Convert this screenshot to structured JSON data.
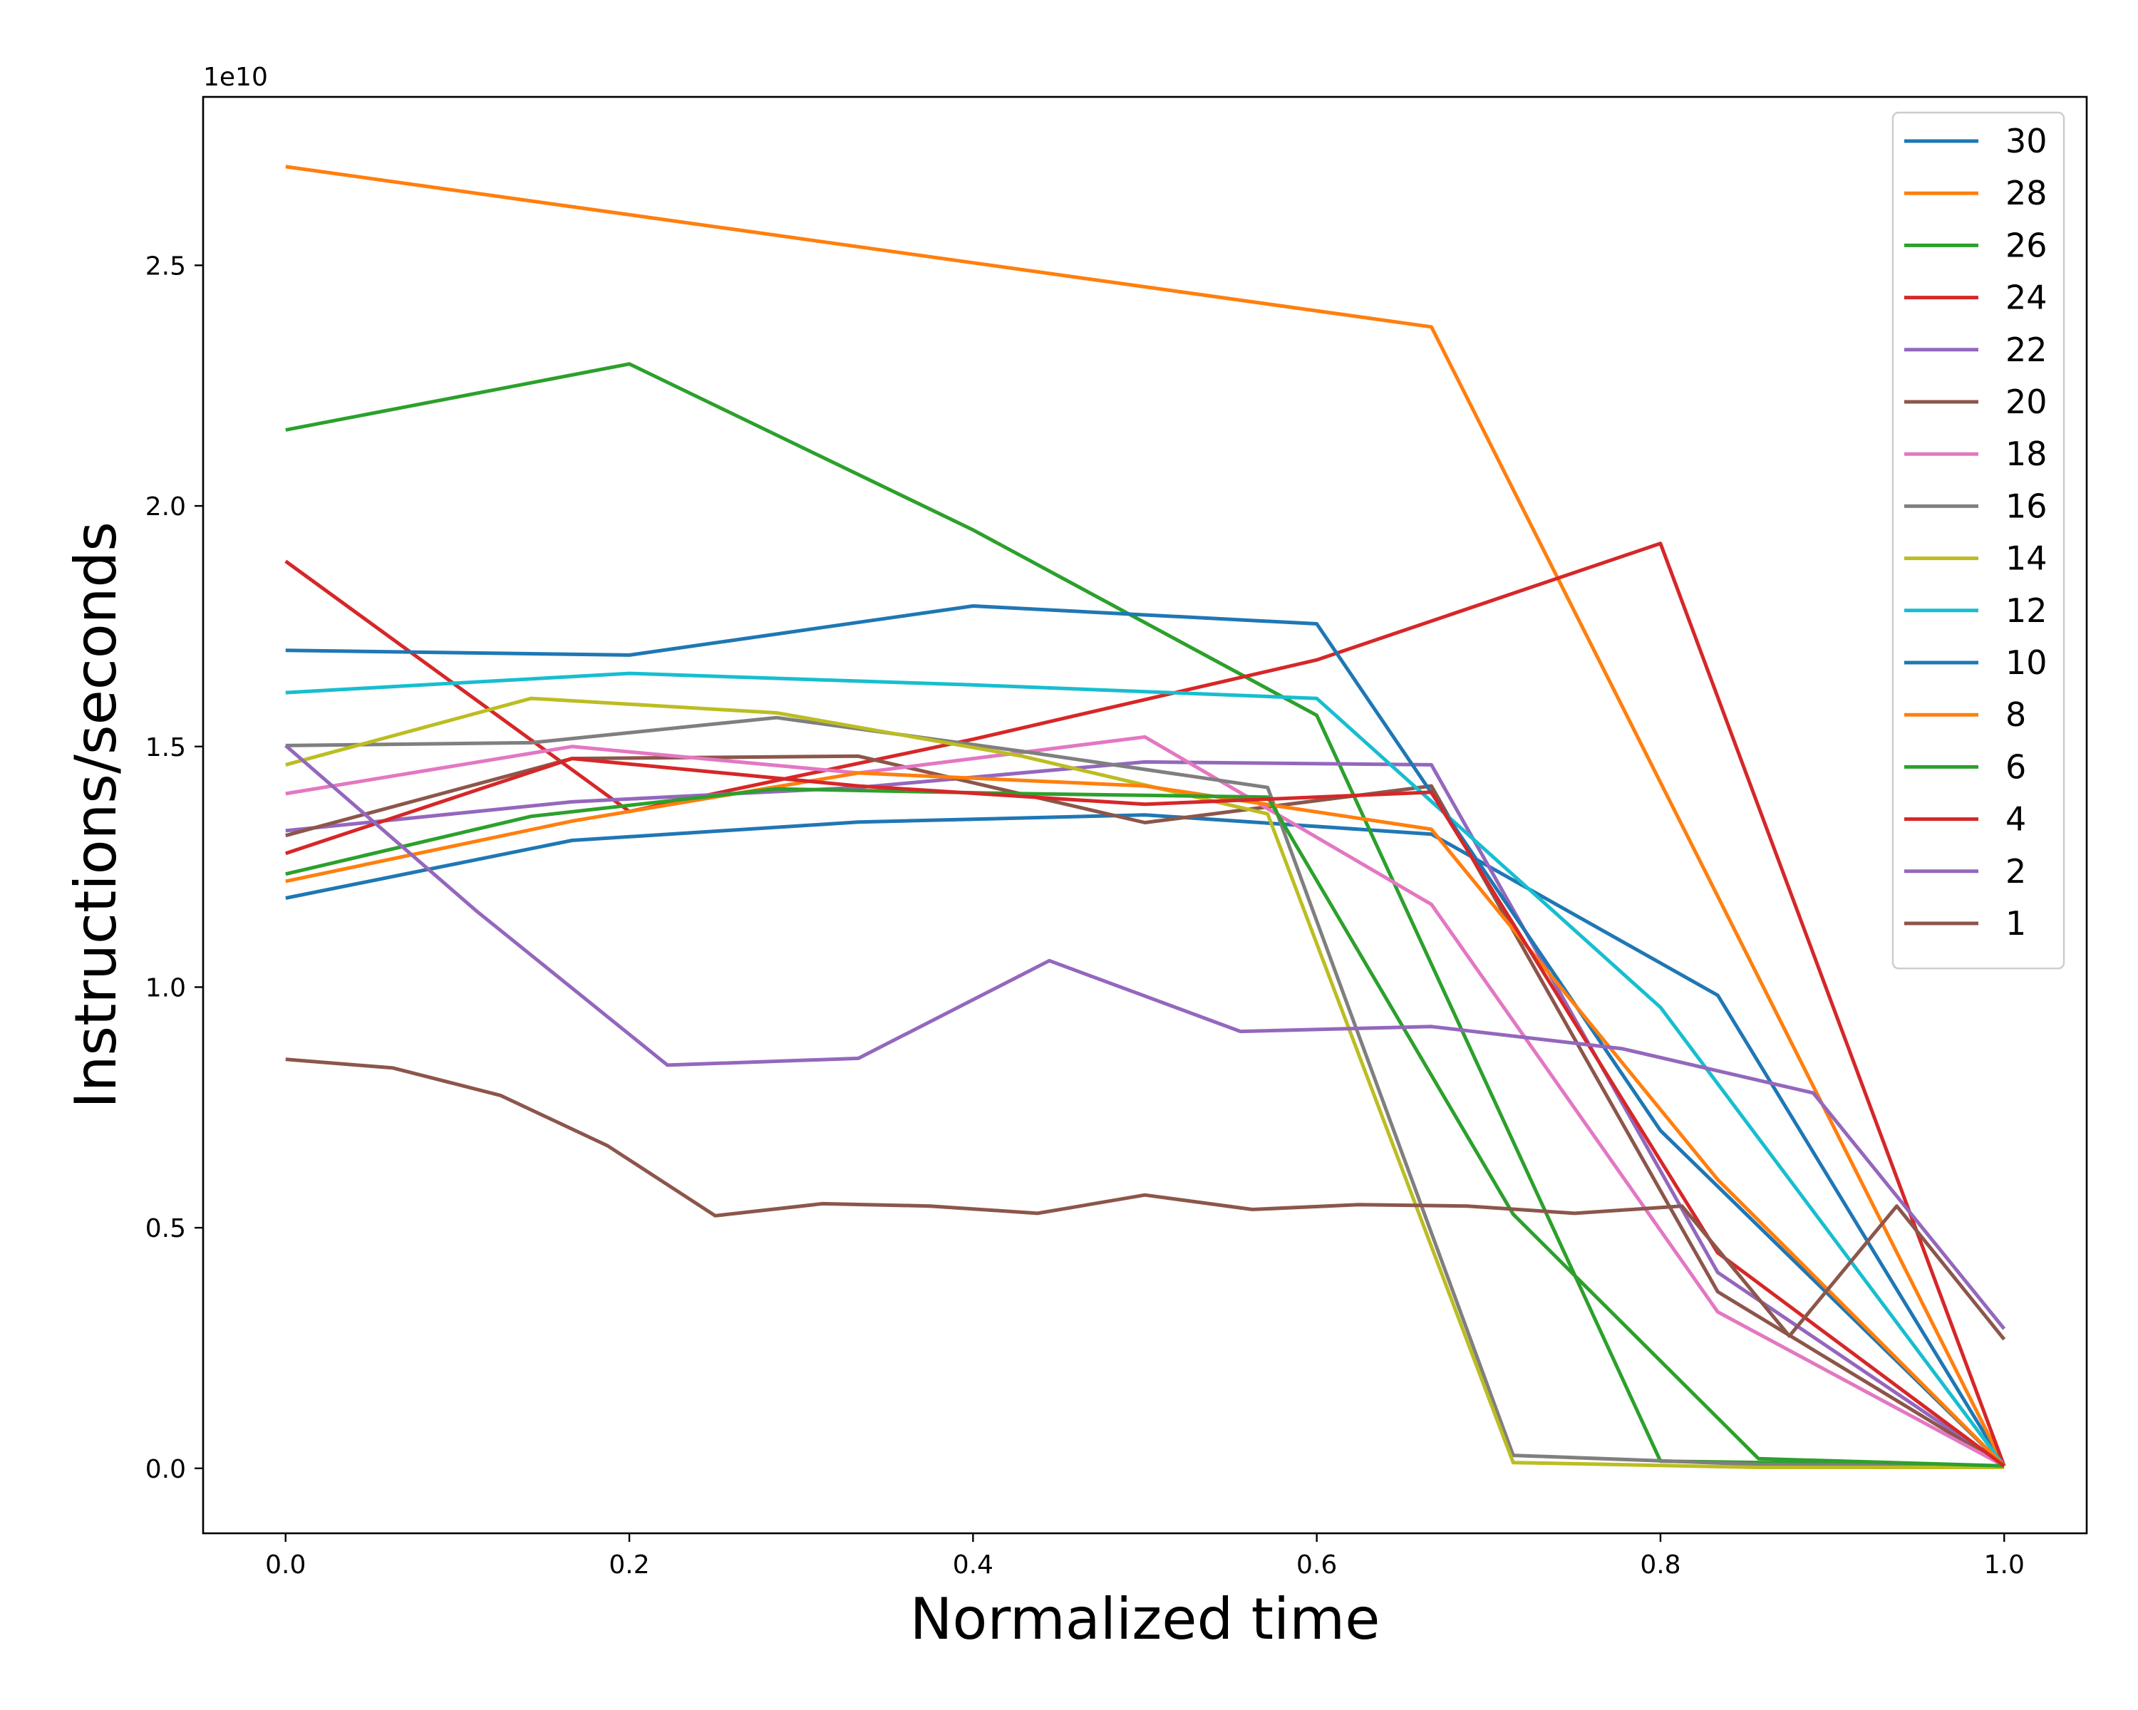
{
  "chart_data": {
    "type": "line",
    "xlabel": "Normalized time",
    "ylabel": "Instructions/seconds",
    "y_offset_label": "1e10",
    "xlim": [
      -0.048,
      1.048
    ],
    "ylim": [
      -0.135,
      2.85
    ],
    "y_scale_factor": 10000000000,
    "xticks": [
      0.0,
      0.2,
      0.4,
      0.6,
      0.8,
      1.0
    ],
    "xtick_labels": [
      "0.0",
      "0.2",
      "0.4",
      "0.6",
      "0.8",
      "1.0"
    ],
    "yticks": [
      0.0,
      0.5,
      1.0,
      1.5,
      2.0,
      2.5
    ],
    "ytick_labels": [
      "0.0",
      "0.5",
      "1.0",
      "1.5",
      "2.0",
      "2.5"
    ],
    "grid": false,
    "legend_position": "top-right",
    "series": [
      {
        "name": "30",
        "color": "#1f77b4",
        "points": [
          [
            0.0,
            1.185
          ],
          [
            0.1667,
            1.305
          ],
          [
            0.3333,
            1.343
          ],
          [
            0.5,
            1.358
          ],
          [
            0.6667,
            1.318
          ],
          [
            0.8333,
            0.983
          ],
          [
            1.0,
            0.005
          ]
        ]
      },
      {
        "name": "28",
        "color": "#ff7f0e",
        "points": [
          [
            0.0,
            2.705
          ],
          [
            0.6667,
            2.372
          ],
          [
            1.0,
            0.005
          ]
        ]
      },
      {
        "name": "26",
        "color": "#2ca02c",
        "points": [
          [
            0.0,
            2.158
          ],
          [
            0.2,
            2.295
          ],
          [
            0.4,
            1.95
          ],
          [
            0.6,
            1.565
          ],
          [
            0.8,
            0.015
          ],
          [
            1.0,
            0.005
          ]
        ]
      },
      {
        "name": "24",
        "color": "#d62728",
        "points": [
          [
            0.0,
            1.885
          ],
          [
            0.2,
            1.365
          ],
          [
            0.4,
            1.515
          ],
          [
            0.6,
            1.68
          ],
          [
            0.8,
            1.922
          ],
          [
            1.0,
            0.005
          ]
        ]
      },
      {
        "name": "22",
        "color": "#9467bd",
        "points": [
          [
            0.0,
            1.325
          ],
          [
            0.1667,
            1.385
          ],
          [
            0.3333,
            1.415
          ],
          [
            0.5,
            1.468
          ],
          [
            0.6667,
            1.462
          ],
          [
            0.8333,
            0.407
          ],
          [
            1.0,
            0.005
          ]
        ]
      },
      {
        "name": "20",
        "color": "#8c564b",
        "points": [
          [
            0.0,
            1.315
          ],
          [
            0.1667,
            1.475
          ],
          [
            0.3333,
            1.48
          ],
          [
            0.5,
            1.342
          ],
          [
            0.6667,
            1.418
          ],
          [
            0.8333,
            0.367
          ],
          [
            1.0,
            0.005
          ]
        ]
      },
      {
        "name": "18",
        "color": "#e377c2",
        "points": [
          [
            0.0,
            1.402
          ],
          [
            0.1667,
            1.5
          ],
          [
            0.3333,
            1.445
          ],
          [
            0.5,
            1.52
          ],
          [
            0.6667,
            1.172
          ],
          [
            0.8333,
            0.325
          ],
          [
            1.0,
            0.005
          ]
        ]
      },
      {
        "name": "16",
        "color": "#7f7f7f",
        "points": [
          [
            0.0,
            1.502
          ],
          [
            0.1429,
            1.508
          ],
          [
            0.2857,
            1.56
          ],
          [
            0.4286,
            1.49
          ],
          [
            0.5714,
            1.415
          ],
          [
            0.7143,
            0.027
          ],
          [
            0.8571,
            0.008
          ],
          [
            1.0,
            0.005
          ]
        ]
      },
      {
        "name": "14",
        "color": "#bcbd22",
        "points": [
          [
            0.0,
            1.462
          ],
          [
            0.1429,
            1.6
          ],
          [
            0.2857,
            1.57
          ],
          [
            0.4286,
            1.48
          ],
          [
            0.5714,
            1.36
          ],
          [
            0.7143,
            0.012
          ],
          [
            0.8571,
            0.002
          ],
          [
            1.0,
            0.002
          ]
        ]
      },
      {
        "name": "12",
        "color": "#17becf",
        "points": [
          [
            0.0,
            1.612
          ],
          [
            0.2,
            1.652
          ],
          [
            0.4,
            1.628
          ],
          [
            0.6,
            1.6
          ],
          [
            0.8,
            0.958
          ],
          [
            1.0,
            0.005
          ]
        ]
      },
      {
        "name": "10",
        "color": "#1f77b4",
        "points": [
          [
            0.0,
            1.7
          ],
          [
            0.2,
            1.69
          ],
          [
            0.4,
            1.792
          ],
          [
            0.6,
            1.755
          ],
          [
            0.8,
            0.702
          ],
          [
            1.0,
            0.005
          ]
        ]
      },
      {
        "name": "8",
        "color": "#ff7f0e",
        "points": [
          [
            0.0,
            1.22
          ],
          [
            0.1667,
            1.345
          ],
          [
            0.3333,
            1.445
          ],
          [
            0.5,
            1.418
          ],
          [
            0.6667,
            1.328
          ],
          [
            0.8333,
            0.6
          ],
          [
            1.0,
            0.005
          ]
        ]
      },
      {
        "name": "6",
        "color": "#2ca02c",
        "points": [
          [
            0.0,
            1.235
          ],
          [
            0.1429,
            1.355
          ],
          [
            0.2857,
            1.412
          ],
          [
            0.4286,
            1.402
          ],
          [
            0.5714,
            1.395
          ],
          [
            0.7143,
            0.528
          ],
          [
            0.8571,
            0.02
          ],
          [
            1.0,
            0.005
          ]
        ]
      },
      {
        "name": "4",
        "color": "#d62728",
        "points": [
          [
            0.0,
            1.278
          ],
          [
            0.1667,
            1.475
          ],
          [
            0.3333,
            1.418
          ],
          [
            0.5,
            1.38
          ],
          [
            0.6667,
            1.405
          ],
          [
            0.8333,
            0.448
          ],
          [
            1.0,
            0.005
          ]
        ]
      },
      {
        "name": "2",
        "color": "#9467bd",
        "points": [
          [
            0.0,
            1.502
          ],
          [
            0.1111,
            1.158
          ],
          [
            0.2222,
            0.838
          ],
          [
            0.3333,
            0.852
          ],
          [
            0.4444,
            1.055
          ],
          [
            0.5556,
            0.908
          ],
          [
            0.6667,
            0.918
          ],
          [
            0.7778,
            0.872
          ],
          [
            0.8889,
            0.78
          ],
          [
            1.0,
            0.29
          ]
        ]
      },
      {
        "name": "1",
        "color": "#8c564b",
        "points": [
          [
            0.0,
            0.85
          ],
          [
            0.0625,
            0.832
          ],
          [
            0.125,
            0.775
          ],
          [
            0.1875,
            0.67
          ],
          [
            0.25,
            0.525
          ],
          [
            0.3125,
            0.55
          ],
          [
            0.375,
            0.545
          ],
          [
            0.4375,
            0.53
          ],
          [
            0.5,
            0.568
          ],
          [
            0.5625,
            0.538
          ],
          [
            0.625,
            0.548
          ],
          [
            0.6875,
            0.545
          ],
          [
            0.75,
            0.53
          ],
          [
            0.8125,
            0.545
          ],
          [
            0.875,
            0.275
          ],
          [
            0.9375,
            0.545
          ],
          [
            1.0,
            0.268
          ]
        ]
      }
    ]
  }
}
